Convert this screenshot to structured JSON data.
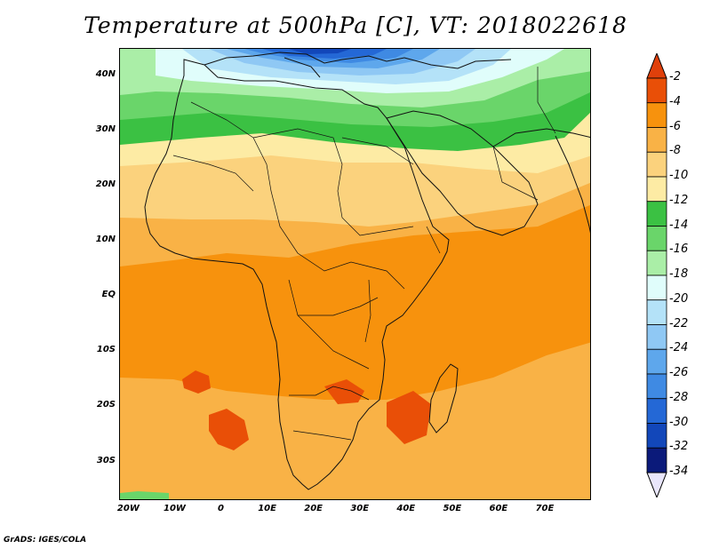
{
  "title": "Temperature at 500hPa [C], VT: 2018022618",
  "credit": "GrADS: IGES/COLA",
  "map": {
    "lat_range": [
      -37,
      45
    ],
    "lon_range": [
      -22,
      80
    ],
    "lat_labels": [
      "40N",
      "30N",
      "20N",
      "10N",
      "EQ",
      "10S",
      "20S",
      "30S"
    ],
    "lat_values": [
      40,
      30,
      20,
      10,
      0,
      -10,
      -20,
      -30
    ],
    "lon_labels": [
      "20W",
      "10W",
      "0",
      "10E",
      "20E",
      "30E",
      "40E",
      "50E",
      "60E",
      "70E"
    ],
    "lon_values": [
      -20,
      -10,
      0,
      10,
      20,
      30,
      40,
      50,
      60,
      70
    ]
  },
  "colorbar": {
    "labels": [
      "-2",
      "-4",
      "-6",
      "-8",
      "-10",
      "-12",
      "-14",
      "-16",
      "-18",
      "-20",
      "-22",
      "-24",
      "-26",
      "-28",
      "-30",
      "-32",
      "-34"
    ],
    "bins": [
      {
        "range": "-4 to -2",
        "color": "#e94f07"
      },
      {
        "range": "-6 to -4",
        "color": "#f7920d"
      },
      {
        "range": "-8 to -6",
        "color": "#f9b246"
      },
      {
        "range": "-10 to -8",
        "color": "#fbd27d"
      },
      {
        "range": "-12 to -10",
        "color": "#fdeba4"
      },
      {
        "range": "-14 to -12",
        "color": "#3bc143"
      },
      {
        "range": "-16 to -14",
        "color": "#6ad56a"
      },
      {
        "range": "-18 to -16",
        "color": "#aaeea7"
      },
      {
        "range": "-20 to -18",
        "color": "#e0fdfb"
      },
      {
        "range": "-22 to -20",
        "color": "#b4e2f8"
      },
      {
        "range": "-24 to -22",
        "color": "#8fc8f4"
      },
      {
        "range": "-26 to -24",
        "color": "#5ea7ec"
      },
      {
        "range": "-28 to -26",
        "color": "#3f8ae3"
      },
      {
        "range": "-30 to -28",
        "color": "#2468d6"
      },
      {
        "range": "-32 to -30",
        "color": "#1247ba"
      },
      {
        "range": "-34 to -32",
        "color": "#0b1a7a"
      }
    ],
    "over_color": "#e0400b",
    "under_color": "#e9e6fb"
  }
}
